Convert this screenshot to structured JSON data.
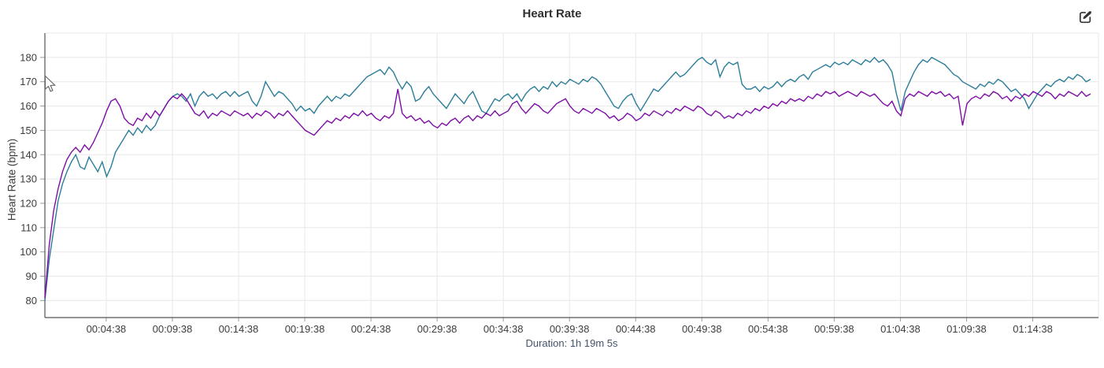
{
  "header": {
    "edit_icon": "edit-icon"
  },
  "chart_data": {
    "type": "line",
    "title": "Heart Rate",
    "ylabel": "Heart Rate (bpm)",
    "xlabel": "Duration: 1h 19m 5s",
    "x_unit": "seconds",
    "x_start": 0,
    "x_step": 20,
    "xlim": [
      0,
      4776
    ],
    "ylim": [
      73,
      190
    ],
    "grid": true,
    "legend_position": "none",
    "yticks": [
      80,
      90,
      100,
      110,
      120,
      130,
      140,
      150,
      160,
      170,
      180
    ],
    "xticks": [
      {
        "t": 278,
        "label": "00:04:38"
      },
      {
        "t": 578,
        "label": "00:09:38"
      },
      {
        "t": 878,
        "label": "00:14:38"
      },
      {
        "t": 1178,
        "label": "00:19:38"
      },
      {
        "t": 1478,
        "label": "00:24:38"
      },
      {
        "t": 1778,
        "label": "00:29:38"
      },
      {
        "t": 2078,
        "label": "00:34:38"
      },
      {
        "t": 2378,
        "label": "00:39:38"
      },
      {
        "t": 2678,
        "label": "00:44:38"
      },
      {
        "t": 2978,
        "label": "00:49:38"
      },
      {
        "t": 3278,
        "label": "00:54:38"
      },
      {
        "t": 3578,
        "label": "00:59:38"
      },
      {
        "t": 3878,
        "label": "01:04:38"
      },
      {
        "t": 4178,
        "label": "01:09:38"
      },
      {
        "t": 4478,
        "label": "01:14:38"
      }
    ],
    "colors": {
      "grid": "#e8e8e8",
      "axis": "#565656",
      "tick": "#9a9a9a",
      "tick_label": "#3d3d3d",
      "title": "#2f2f2f",
      "duration_label": "#44546a",
      "icon": "#333333"
    },
    "series": [
      {
        "name": "teal",
        "color": "#2b7e99",
        "values": [
          80,
          97,
          109,
          121,
          128,
          133,
          137,
          140,
          135,
          134,
          139,
          136,
          133,
          137,
          131,
          135,
          141,
          144,
          147,
          150,
          148,
          151,
          149,
          152,
          150,
          152,
          156,
          159,
          162,
          164,
          165,
          164,
          162,
          165,
          160,
          164,
          166,
          164,
          165,
          163,
          165,
          166,
          164,
          166,
          164,
          165,
          166,
          162,
          160,
          164,
          170,
          167,
          164,
          166,
          165,
          163,
          161,
          158,
          160,
          158,
          159,
          157,
          160,
          162,
          164,
          162,
          164,
          163,
          165,
          164,
          166,
          168,
          170,
          172,
          173,
          174,
          175,
          173,
          176,
          174,
          170,
          167,
          170,
          168,
          162,
          163,
          166,
          168,
          165,
          163,
          161,
          159,
          162,
          165,
          163,
          161,
          164,
          166,
          162,
          158,
          157,
          160,
          163,
          162,
          164,
          165,
          163,
          165,
          162,
          165,
          167,
          168,
          166,
          168,
          167,
          170,
          168,
          170,
          169,
          171,
          170,
          169,
          171,
          170,
          172,
          171,
          169,
          166,
          163,
          160,
          159,
          162,
          164,
          165,
          161,
          158,
          161,
          164,
          167,
          166,
          168,
          170,
          172,
          174,
          172,
          173,
          175,
          177,
          179,
          180,
          178,
          177,
          179,
          172,
          176,
          178,
          177,
          178,
          169,
          167,
          167,
          168,
          166,
          168,
          167,
          168,
          170,
          168,
          170,
          171,
          170,
          172,
          173,
          171,
          174,
          175,
          176,
          177,
          176,
          178,
          177,
          178,
          177,
          179,
          178,
          177,
          179,
          178,
          180,
          178,
          179,
          177,
          174,
          165,
          158,
          166,
          170,
          174,
          177,
          179,
          178,
          180,
          179,
          178,
          177,
          175,
          173,
          172,
          170,
          169,
          168,
          167,
          169,
          168,
          170,
          169,
          171,
          170,
          168,
          166,
          167,
          165,
          163,
          159,
          162,
          165,
          167,
          169,
          168,
          170,
          171,
          170,
          172,
          171,
          173,
          172,
          170,
          171
        ]
      },
      {
        "name": "purple",
        "color": "#7e0da6",
        "values": [
          81,
          103,
          117,
          126,
          133,
          138,
          141,
          143,
          141,
          144,
          142,
          145,
          149,
          153,
          158,
          162,
          163,
          160,
          155,
          153,
          152,
          155,
          154,
          157,
          155,
          158,
          156,
          159,
          162,
          164,
          163,
          165,
          163,
          160,
          157,
          156,
          158,
          155,
          157,
          156,
          158,
          157,
          156,
          158,
          157,
          156,
          157,
          155,
          157,
          156,
          158,
          157,
          155,
          157,
          156,
          158,
          156,
          154,
          152,
          150,
          149,
          148,
          150,
          152,
          154,
          153,
          155,
          154,
          156,
          155,
          157,
          156,
          158,
          156,
          157,
          155,
          154,
          156,
          155,
          157,
          167,
          157,
          155,
          156,
          154,
          155,
          153,
          154,
          152,
          151,
          153,
          152,
          154,
          155,
          153,
          155,
          156,
          154,
          156,
          155,
          157,
          156,
          158,
          156,
          157,
          158,
          161,
          162,
          159,
          157,
          159,
          161,
          160,
          158,
          157,
          159,
          161,
          162,
          163,
          160,
          158,
          157,
          159,
          158,
          157,
          159,
          158,
          157,
          155,
          156,
          154,
          155,
          157,
          156,
          154,
          155,
          157,
          156,
          158,
          157,
          156,
          158,
          157,
          159,
          158,
          160,
          159,
          158,
          160,
          159,
          157,
          156,
          158,
          157,
          155,
          156,
          155,
          157,
          156,
          158,
          157,
          159,
          158,
          160,
          159,
          161,
          160,
          162,
          161,
          163,
          162,
          163,
          162,
          164,
          163,
          165,
          164,
          166,
          165,
          166,
          164,
          165,
          166,
          165,
          164,
          166,
          165,
          164,
          165,
          163,
          161,
          160,
          162,
          158,
          156,
          163,
          165,
          164,
          166,
          165,
          164,
          166,
          165,
          166,
          164,
          165,
          163,
          164,
          152,
          161,
          163,
          164,
          163,
          165,
          164,
          166,
          165,
          163,
          164,
          162,
          164,
          163,
          165,
          164,
          166,
          165,
          164,
          166,
          165,
          163,
          165,
          164,
          166,
          165,
          164,
          166,
          164,
          165
        ]
      }
    ]
  }
}
